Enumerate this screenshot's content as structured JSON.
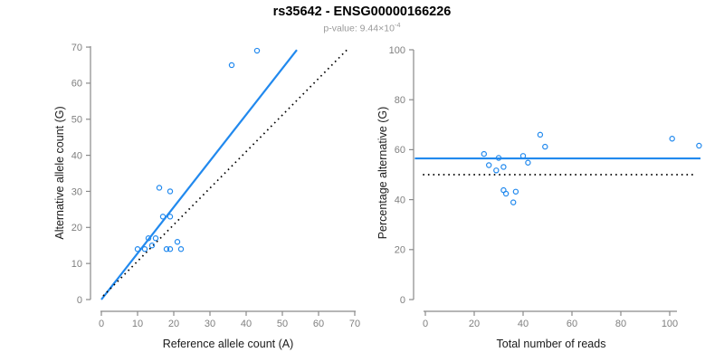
{
  "header": {
    "title": "rs35642 - ENSG00000166226",
    "subtitle_base": "p-value: 9.44×10",
    "subtitle_exp": "-4"
  },
  "colors": {
    "accent_blue": "#2189ee",
    "axis_gray": "#8a8a8a",
    "tick_label_gray": "#7f7f7f",
    "axis_title_black": "#1a1a1a",
    "dotted_black": "#000000"
  },
  "chart_data": [
    {
      "id": "allele-counts-scatter",
      "type": "scatter",
      "title": "",
      "xlabel": "Reference allele count (A)",
      "ylabel": "Alternative allele count (G)",
      "xlim": [
        0,
        70
      ],
      "ylim": [
        0,
        70
      ],
      "xticks": [
        0,
        10,
        20,
        30,
        40,
        50,
        60,
        70
      ],
      "yticks": [
        0,
        10,
        20,
        30,
        40,
        50,
        60,
        70
      ],
      "grid": false,
      "legend": "none",
      "points": [
        [
          36,
          65
        ],
        [
          43,
          69
        ],
        [
          16,
          31
        ],
        [
          19,
          30
        ],
        [
          17,
          23
        ],
        [
          19,
          23
        ],
        [
          13,
          17
        ],
        [
          15,
          17
        ],
        [
          14,
          15
        ],
        [
          21,
          16
        ],
        [
          10,
          14
        ],
        [
          12,
          14
        ],
        [
          18,
          14
        ],
        [
          19,
          14
        ],
        [
          22,
          14
        ]
      ],
      "lines": [
        {
          "name": "regression-line",
          "style": "solid",
          "color": "accent",
          "from": [
            0,
            0
          ],
          "to": [
            54,
            69.2
          ]
        },
        {
          "name": "identity-line",
          "style": "dotted",
          "color": "black",
          "from": [
            0.5,
            1
          ],
          "to": [
            68.3,
            69.7
          ]
        }
      ]
    },
    {
      "id": "percentage-scatter",
      "type": "scatter",
      "title": "",
      "xlabel": "Total number of reads",
      "ylabel": "Percentage alternative (G)",
      "xlim": [
        0,
        112
      ],
      "ylim": [
        0,
        100
      ],
      "xticks": [
        0,
        20,
        40,
        60,
        80,
        100
      ],
      "yticks": [
        0,
        20,
        40,
        60,
        80,
        100
      ],
      "grid": false,
      "legend": "none",
      "points": [
        [
          101,
          64.4
        ],
        [
          112,
          61.6
        ],
        [
          47,
          66.0
        ],
        [
          49,
          61.2
        ],
        [
          40,
          57.5
        ],
        [
          42,
          54.8
        ],
        [
          30,
          56.7
        ],
        [
          32,
          53.1
        ],
        [
          29,
          51.7
        ],
        [
          37,
          43.2
        ],
        [
          24,
          58.3
        ],
        [
          26,
          53.8
        ],
        [
          32,
          43.8
        ],
        [
          33,
          42.4
        ],
        [
          36,
          38.9
        ]
      ],
      "lines": [
        {
          "name": "mean-percentage-line",
          "style": "solid",
          "color": "accent",
          "from": [
            -4.3,
            56.5
          ],
          "to": [
            112.6,
            56.5
          ]
        },
        {
          "name": "expected-percentage-line",
          "style": "dotted",
          "color": "black",
          "from": [
            -1,
            50
          ],
          "to": [
            110,
            50
          ]
        }
      ]
    }
  ]
}
